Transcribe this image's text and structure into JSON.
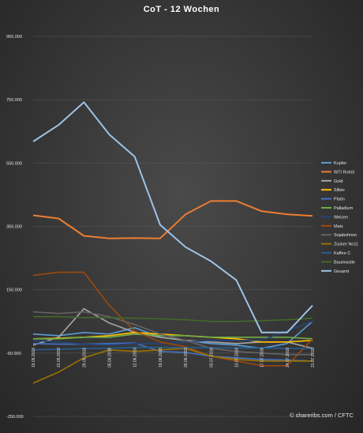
{
  "chart_data": {
    "type": "line",
    "title": "CoT - 12 Wochen",
    "xlabel": "",
    "ylabel": "",
    "x": [
      "15.05.2018",
      "22.05.2018",
      "29.05.2018",
      "05.06.2018",
      "12.06.2018",
      "19.06.2018",
      "26.06.2018",
      "03.07.2018",
      "10.07.2018",
      "17.07.2018",
      "24.07.2018",
      "31.07.2018"
    ],
    "y_ticks": [
      "950.000",
      "750.000",
      "550.000",
      "350.000",
      "150.000",
      "-50.000",
      "-250.000"
    ],
    "y_tick_values": [
      950000,
      750000,
      550000,
      350000,
      150000,
      -50000,
      -250000
    ],
    "ylim": [
      -250000,
      950000
    ],
    "grid": true,
    "legend_position": "right",
    "series": [
      {
        "name": "Kupfer",
        "color": "#5b9bd5",
        "values": [
          10000,
          5000,
          15000,
          10000,
          30000,
          0,
          -10000,
          -20000,
          -25000,
          -35000,
          -20000,
          50000
        ]
      },
      {
        "name": "WTI Rohöl",
        "color": "#ed7d31",
        "values": [
          385000,
          375000,
          320000,
          312000,
          313000,
          312000,
          388000,
          430000,
          430000,
          398000,
          388000,
          383000
        ]
      },
      {
        "name": "Gold",
        "color": "#a5a5a5",
        "values": [
          -25000,
          0,
          90000,
          45000,
          15000,
          0,
          -10000,
          -15000,
          -20000,
          -15000,
          -15000,
          -35000
        ]
      },
      {
        "name": "Silber",
        "color": "#ffc000",
        "values": [
          -5000,
          -3000,
          0,
          5000,
          15000,
          10000,
          5000,
          0,
          -5000,
          -15000,
          -15000,
          -10000
        ]
      },
      {
        "name": "Platin",
        "color": "#4472c4",
        "values": [
          -20000,
          -22000,
          -22000,
          -20000,
          -18000,
          -45000,
          -48000,
          -60000,
          -65000,
          -70000,
          -72000,
          -75000
        ]
      },
      {
        "name": "Palladium",
        "color": "#70ad47",
        "values": [
          -5000,
          -5000,
          0,
          0,
          10000,
          5000,
          5000,
          0,
          0,
          0,
          0,
          -5000
        ]
      },
      {
        "name": "Weizen",
        "color": "#264478",
        "values": [
          -10000,
          -15000,
          -22000,
          -25000,
          -20000,
          -20000,
          -15000,
          -10000,
          -10000,
          -10000,
          20000,
          50000
        ]
      },
      {
        "name": "Mais",
        "color": "#9e480e",
        "values": [
          195000,
          205000,
          205000,
          100000,
          20000,
          -15000,
          -30000,
          -60000,
          -75000,
          -90000,
          -90000,
          -5000
        ]
      },
      {
        "name": "Sojabohnen",
        "color": "#636363",
        "values": [
          80000,
          75000,
          80000,
          65000,
          40000,
          10000,
          -10000,
          -35000,
          -45000,
          -50000,
          -55000,
          -55000
        ]
      },
      {
        "name": "Zucker No11",
        "color": "#997300",
        "values": [
          -145000,
          -110000,
          -65000,
          -40000,
          -45000,
          -40000,
          -35000,
          -60000,
          -70000,
          -75000,
          -75000,
          -75000
        ]
      },
      {
        "name": "Kaffee C",
        "color": "#255e91",
        "values": [
          -40000,
          -38000,
          -36000,
          -35000,
          -32000,
          -32000,
          -33000,
          -33000,
          -34000,
          -34000,
          -35000,
          -36000
        ]
      },
      {
        "name": "Baumwolle",
        "color": "#43682b",
        "values": [
          65000,
          65000,
          62000,
          62000,
          60000,
          58000,
          55000,
          50000,
          50000,
          52000,
          55000,
          60000
        ]
      },
      {
        "name": "Gesamt",
        "color": "#9dc3e6",
        "values": [
          618000,
          670000,
          742000,
          640000,
          570000,
          355000,
          285000,
          240000,
          180000,
          15000,
          15000,
          100000
        ]
      }
    ]
  },
  "credit": "© sharerib s.com / CFTC"
}
